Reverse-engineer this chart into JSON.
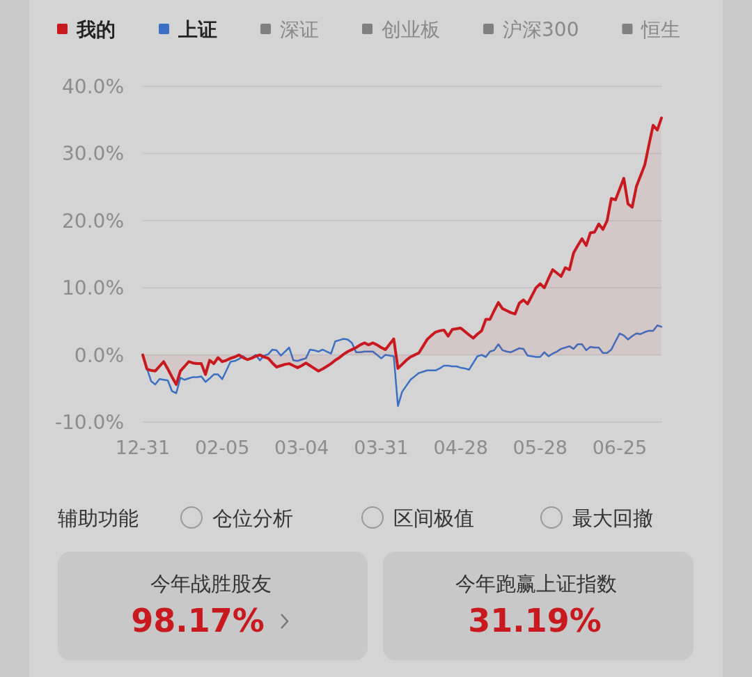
{
  "chart_data": [
    {
      "type": "line",
      "legend": "top",
      "grid": "y",
      "ylim": [
        -10,
        40
      ],
      "yticks": [
        {
          "value": -10,
          "label": "-10.0%"
        },
        {
          "value": 0,
          "label": "0.0%"
        },
        {
          "value": 10,
          "label": "10.0%"
        },
        {
          "value": 20,
          "label": "20.0%"
        },
        {
          "value": 30,
          "label": "30.0%"
        },
        {
          "value": 40,
          "label": "40.0%"
        }
      ],
      "categories": [
        "12-31",
        null,
        null,
        null,
        null,
        null,
        null,
        null,
        null,
        null,
        null,
        null,
        null,
        null,
        null,
        null,
        null,
        null,
        null,
        "02-05",
        null,
        null,
        null,
        null,
        null,
        null,
        null,
        null,
        null,
        null,
        null,
        null,
        null,
        null,
        null,
        null,
        null,
        null,
        "03-04",
        null,
        null,
        null,
        null,
        null,
        null,
        null,
        null,
        null,
        null,
        null,
        null,
        null,
        null,
        null,
        null,
        null,
        null,
        "03-31",
        null,
        null,
        null,
        null,
        null,
        null,
        null,
        null,
        null,
        null,
        null,
        null,
        null,
        null,
        null,
        null,
        null,
        null,
        "04-28",
        null,
        null,
        null,
        null,
        null,
        null,
        null,
        null,
        null,
        null,
        null,
        null,
        null,
        null,
        null,
        null,
        null,
        null,
        "05-28",
        null,
        null,
        null,
        null,
        null,
        null,
        null,
        null,
        null,
        null,
        null,
        null,
        null,
        null,
        null,
        null,
        null,
        null,
        "06-25",
        null,
        null,
        null,
        null,
        null,
        null,
        null,
        null,
        null,
        null
      ],
      "series": [
        {
          "name": "我的",
          "type": "area",
          "color": "#c8191e",
          "values": [
            0,
            -2.1,
            -2.3,
            -2.4,
            -1.7,
            -1.0,
            -2.1,
            -3.3,
            -4.4,
            -2.4,
            -1.7,
            -1.0,
            -1.2,
            -1.3,
            -1.3,
            -2.9,
            -0.8,
            -1.3,
            -0.4,
            -1.0,
            -0.8,
            -0.5,
            -0.3,
            0,
            -0.4,
            -0.7,
            -0.5,
            -0.2,
            0,
            -0.3,
            -0.5,
            -1.2,
            -1.8,
            -1.6,
            -1.4,
            -1.3,
            -1.6,
            -1.9,
            -1.6,
            -1.2,
            -1.6,
            -2.0,
            -2.4,
            -2.1,
            -1.7,
            -1.3,
            -0.8,
            -0.4,
            0.1,
            0.5,
            0.8,
            1.1,
            1.5,
            1.8,
            1.5,
            1.8,
            1.5,
            1.1,
            0.8,
            1.6,
            2.4,
            -2.0,
            -1.4,
            -0.8,
            -0.3,
            0,
            0.3,
            1.3,
            2.3,
            2.9,
            3.4,
            3.6,
            3.7,
            2.8,
            3.8,
            3.9,
            4.0,
            3.5,
            3.0,
            2.5,
            3.1,
            3.6,
            5.3,
            5.3,
            6.6,
            7.8,
            6.9,
            6.6,
            6.3,
            6.1,
            7.7,
            8.2,
            7.6,
            8.8,
            10.0,
            10.6,
            10.0,
            11.4,
            12.7,
            12.2,
            11.7,
            13.0,
            12.7,
            15.2,
            16.3,
            17.3,
            16.3,
            18.2,
            18.3,
            19.5,
            18.7,
            20.0,
            23.3,
            23.1,
            24.7,
            26.3,
            22.5,
            22.0,
            25.1,
            26.7,
            28.3,
            31.3,
            34.2,
            33.5,
            35.3
          ]
        },
        {
          "name": "上证",
          "color": "#3a6fc4",
          "values": [
            0,
            -2.0,
            -3.9,
            -4.4,
            -3.6,
            -3.7,
            -3.8,
            -5.4,
            -5.7,
            -3.4,
            -3.7,
            -3.5,
            -3.3,
            -3.3,
            -3.2,
            -4.0,
            -3.5,
            -2.9,
            -2.9,
            -3.6,
            -2.3,
            -1.0,
            -0.9,
            -0.6,
            -0.2,
            -0.7,
            -0.4,
            0,
            -0.8,
            -0.1,
            0.1,
            0.8,
            0.7,
            -0.1,
            0.5,
            1.1,
            -0.8,
            -0.9,
            -0.7,
            -0.5,
            0.8,
            0.7,
            0.5,
            0.8,
            0.5,
            0.2,
            2.0,
            2.2,
            2.4,
            2.3,
            1.8,
            0.4,
            0.4,
            0.5,
            0.5,
            0.5,
            0,
            -0.5,
            0,
            -0.1,
            -0.2,
            -7.6,
            -5.5,
            -4.6,
            -3.7,
            -3.2,
            -2.7,
            -2.5,
            -2.3,
            -2.3,
            -2.3,
            -2.0,
            -1.6,
            -1.6,
            -1.7,
            -1.7,
            -1.9,
            -2.0,
            -2.2,
            -1.2,
            -0.2,
            0,
            -0.3,
            0.5,
            0.7,
            1.6,
            0.7,
            0.5,
            0.4,
            0.7,
            1.0,
            0.9,
            -0.1,
            -0.2,
            -0.3,
            -0.3,
            0.4,
            -0.2,
            0.2,
            0.5,
            0.9,
            1.1,
            1.3,
            0.9,
            1.6,
            1.6,
            0.7,
            1.2,
            1.1,
            1.1,
            0.3,
            0.3,
            0.8,
            2.0,
            3.2,
            2.9,
            2.3,
            2.8,
            3.2,
            3.1,
            3.4,
            3.6,
            3.6,
            4.4,
            4.2
          ]
        },
        {
          "name": "深证",
          "color": "#808080",
          "values": [
            null,
            null,
            null,
            null,
            null,
            null,
            null,
            null,
            null,
            null,
            null,
            null,
            null,
            null,
            null,
            null,
            null,
            null,
            null,
            null,
            null,
            null,
            null,
            null,
            null,
            null,
            null,
            null,
            null,
            null,
            null,
            null,
            null,
            null,
            null,
            null,
            null,
            null,
            null,
            null,
            null,
            null,
            null,
            null,
            null,
            null,
            null,
            null,
            null,
            null,
            null,
            null,
            null,
            null,
            null,
            null,
            null,
            null,
            null,
            null,
            null,
            null,
            null,
            null,
            null,
            null,
            null,
            null,
            null,
            null,
            null,
            null,
            null,
            null,
            null,
            null,
            null,
            null,
            null,
            null,
            null,
            null,
            null,
            null,
            null,
            null,
            null,
            null,
            null,
            null,
            null,
            null,
            null,
            null,
            null,
            null,
            null,
            null,
            null,
            null,
            null,
            null,
            null,
            null,
            null,
            null,
            null,
            null,
            null,
            null,
            null,
            null,
            null,
            null,
            null,
            null,
            null,
            null,
            null,
            null,
            null,
            null,
            null,
            null,
            null
          ]
        },
        {
          "name": "创业板",
          "color": "#808080",
          "values": [
            null,
            null,
            null,
            null,
            null,
            null,
            null,
            null,
            null,
            null,
            null,
            null,
            null,
            null,
            null,
            null,
            null,
            null,
            null,
            null,
            null,
            null,
            null,
            null,
            null,
            null,
            null,
            null,
            null,
            null,
            null,
            null,
            null,
            null,
            null,
            null,
            null,
            null,
            null,
            null,
            null,
            null,
            null,
            null,
            null,
            null,
            null,
            null,
            null,
            null,
            null,
            null,
            null,
            null,
            null,
            null,
            null,
            null,
            null,
            null,
            null,
            null,
            null,
            null,
            null,
            null,
            null,
            null,
            null,
            null,
            null,
            null,
            null,
            null,
            null,
            null,
            null,
            null,
            null,
            null,
            null,
            null,
            null,
            null,
            null,
            null,
            null,
            null,
            null,
            null,
            null,
            null,
            null,
            null,
            null,
            null,
            null,
            null,
            null,
            null,
            null,
            null,
            null,
            null,
            null,
            null,
            null,
            null,
            null,
            null,
            null,
            null,
            null,
            null,
            null,
            null,
            null,
            null,
            null,
            null,
            null,
            null,
            null,
            null,
            null
          ]
        },
        {
          "name": "沪深300",
          "color": "#808080",
          "values": [
            null,
            null,
            null,
            null,
            null,
            null,
            null,
            null,
            null,
            null,
            null,
            null,
            null,
            null,
            null,
            null,
            null,
            null,
            null,
            null,
            null,
            null,
            null,
            null,
            null,
            null,
            null,
            null,
            null,
            null,
            null,
            null,
            null,
            null,
            null,
            null,
            null,
            null,
            null,
            null,
            null,
            null,
            null,
            null,
            null,
            null,
            null,
            null,
            null,
            null,
            null,
            null,
            null,
            null,
            null,
            null,
            null,
            null,
            null,
            null,
            null,
            null,
            null,
            null,
            null,
            null,
            null,
            null,
            null,
            null,
            null,
            null,
            null,
            null,
            null,
            null,
            null,
            null,
            null,
            null,
            null,
            null,
            null,
            null,
            null,
            null,
            null,
            null,
            null,
            null,
            null,
            null,
            null,
            null,
            null,
            null,
            null,
            null,
            null,
            null,
            null,
            null,
            null,
            null,
            null,
            null,
            null,
            null,
            null,
            null,
            null,
            null,
            null,
            null,
            null,
            null,
            null,
            null,
            null,
            null,
            null,
            null,
            null,
            null,
            null
          ]
        },
        {
          "name": "恒生",
          "color": "#808080",
          "values": [
            null,
            null,
            null,
            null,
            null,
            null,
            null,
            null,
            null,
            null,
            null,
            null,
            null,
            null,
            null,
            null,
            null,
            null,
            null,
            null,
            null,
            null,
            null,
            null,
            null,
            null,
            null,
            null,
            null,
            null,
            null,
            null,
            null,
            null,
            null,
            null,
            null,
            null,
            null,
            null,
            null,
            null,
            null,
            null,
            null,
            null,
            null,
            null,
            null,
            null,
            null,
            null,
            null,
            null,
            null,
            null,
            null,
            null,
            null,
            null,
            null,
            null,
            null,
            null,
            null,
            null,
            null,
            null,
            null,
            null,
            null,
            null,
            null,
            null,
            null,
            null,
            null,
            null,
            null,
            null,
            null,
            null,
            null,
            null,
            null,
            null,
            null,
            null,
            null,
            null,
            null,
            null,
            null,
            null,
            null,
            null,
            null,
            null,
            null,
            null,
            null,
            null,
            null,
            null,
            null,
            null,
            null,
            null,
            null,
            null,
            null,
            null,
            null,
            null,
            null,
            null,
            null,
            null,
            null,
            null,
            null,
            null,
            null,
            null,
            null
          ]
        }
      ]
    },
    {
      "type": "other",
      "annotations": [
        "辅助功能",
        "仓位分析",
        "区间极值",
        "最大回撤",
        "今年战胜股友",
        "98.17%",
        "今年跑赢上证指数",
        "31.19%"
      ]
    }
  ]
}
